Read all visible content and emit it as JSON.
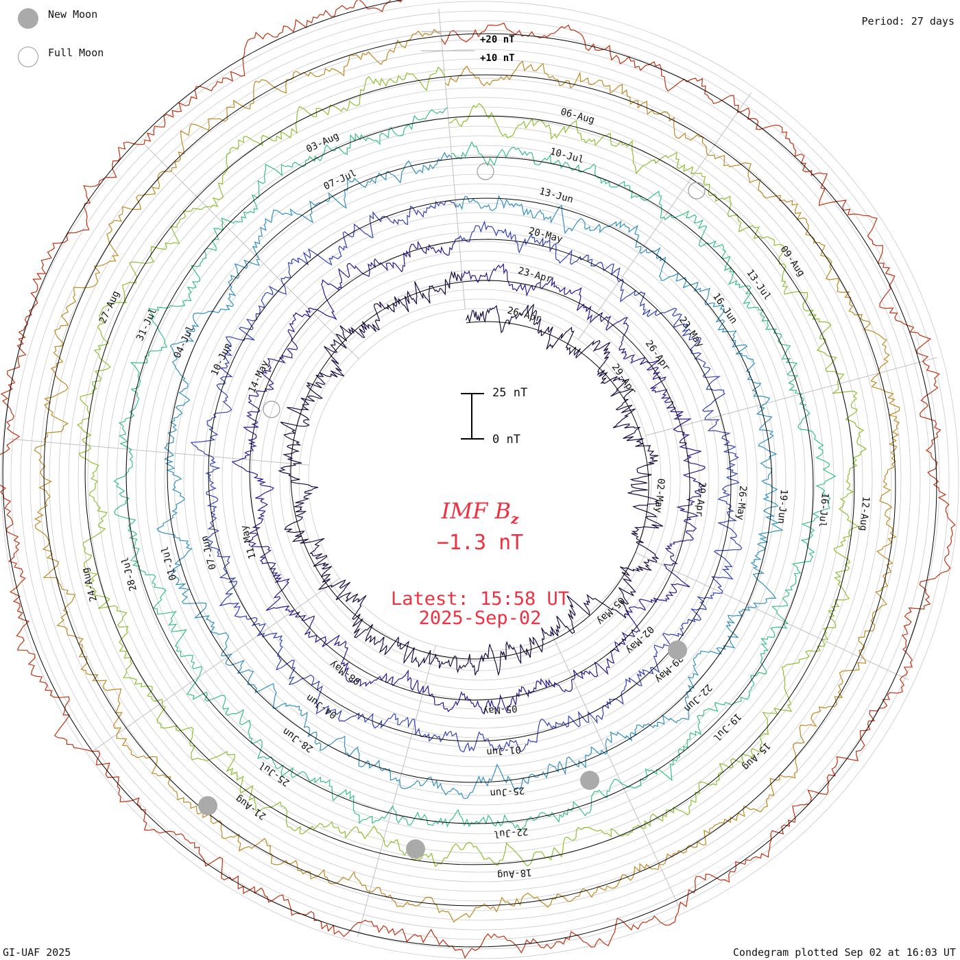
{
  "legend": {
    "new_moon_label": "New Moon",
    "full_moon_label": "Full Moon"
  },
  "period_label": "Period: 27 days",
  "footer": {
    "credit": "GI-UAF 2025",
    "plotted": "Condegram plotted Sep 02 at 16:03 UT"
  },
  "center": {
    "title_main": "IMF B",
    "title_sub": "z",
    "value": "−1.3 nT",
    "latest_line1": "Latest: 15:58 UT",
    "latest_line2": "2025-Sep-02"
  },
  "scale": {
    "top_label": "25 nT",
    "bottom_label": "0 nT",
    "ref_plus20": "+20 nT",
    "ref_plus10": "+10 nT"
  },
  "chart_data": {
    "type": "condegram",
    "title": "IMF Bz",
    "units": "nT",
    "period_days": 27,
    "latest_value": -1.3,
    "latest_time": "15:58 UT",
    "latest_date": "2025-Sep-02",
    "scale_nT": [
      0,
      25
    ],
    "spiral_turns": [
      {
        "turn": 1,
        "color": "#1a0a40",
        "date_labels": [
          "26-Apr",
          "29-Apr",
          "02-May",
          "05-May"
        ]
      },
      {
        "turn": 2,
        "color": "#2a1890",
        "date_labels": [
          "23-Apr",
          "26-Apr",
          "29-Apr",
          "02-May",
          "05-May",
          "08-May",
          "11-May",
          "14-May"
        ]
      },
      {
        "turn": 3,
        "color": "#3040b8",
        "date_labels": [
          "20-May",
          "23-May",
          "26-May",
          "29-May",
          "01-Jun",
          "04-Jun",
          "07-Jun",
          "10-Jun"
        ]
      },
      {
        "turn": 4,
        "color": "#3090c0",
        "date_labels": [
          "13-Jun",
          "16-Jun",
          "19-Jun",
          "22-Jun",
          "25-Jun",
          "28-Jun",
          "01-Jul",
          "04-Jul",
          "07-Jul"
        ]
      },
      {
        "turn": 5,
        "color": "#35c088",
        "date_labels": [
          "10-Jul",
          "13-Jul",
          "16-Jul",
          "19-Jul",
          "22-Jul",
          "25-Jul",
          "28-Jul",
          "31-Jul",
          "03-Aug"
        ]
      },
      {
        "turn": 6,
        "color": "#8cc030",
        "date_labels": [
          "06-Aug",
          "09-Aug",
          "12-Aug",
          "15-Aug",
          "18-Aug",
          "21-Aug",
          "24-Aug",
          "27-Aug"
        ]
      },
      {
        "turn": 7,
        "color": "#c08820",
        "date_labels": []
      },
      {
        "turn": 8,
        "color": "#c03010",
        "date_labels": []
      }
    ],
    "new_moon_dates": [
      "25-Jun",
      "25-Jul",
      "24-Aug",
      "26-May"
    ],
    "full_moon_dates": [
      "10-Jul",
      "09-Aug",
      "11-May"
    ]
  }
}
